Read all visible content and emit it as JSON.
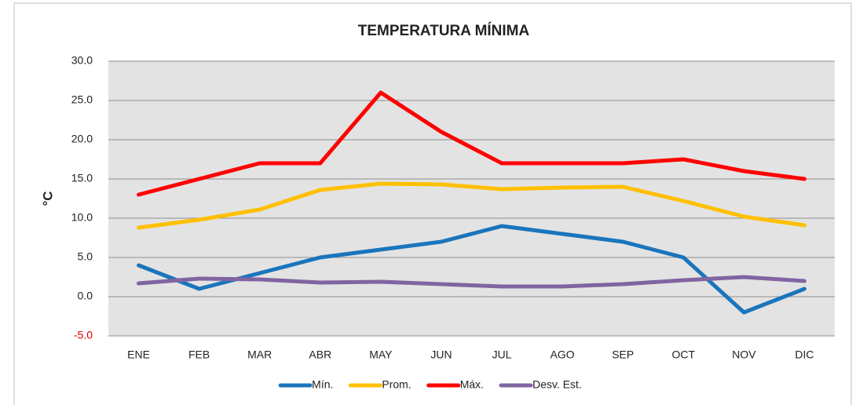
{
  "chart_data": {
    "type": "line",
    "title": "TEMPERATURA MÍNIMA",
    "y_label": "°C",
    "categories": [
      "ENE",
      "FEB",
      "MAR",
      "ABR",
      "MAY",
      "JUN",
      "JUL",
      "AGO",
      "SEP",
      "OCT",
      "NOV",
      "DIC"
    ],
    "series": [
      {
        "name": "Mín.",
        "color": "#1a75bc",
        "values": [
          4,
          1,
          3,
          5,
          6,
          7,
          9,
          8,
          7,
          5,
          -2,
          1
        ]
      },
      {
        "name": "Prom.",
        "color": "#ffc000",
        "values": [
          8.8,
          9.8,
          11.1,
          13.6,
          14.4,
          14.3,
          13.7,
          13.9,
          14.0,
          12.2,
          10.2,
          9.1
        ]
      },
      {
        "name": "Máx.",
        "color": "#ff0000",
        "values": [
          13,
          15,
          17,
          17,
          26,
          21,
          17,
          17,
          17,
          17.5,
          16,
          15
        ]
      },
      {
        "name": "Desv. Est.",
        "color": "#8064a2",
        "values": [
          1.7,
          2.3,
          2.2,
          1.8,
          1.9,
          1.6,
          1.3,
          1.3,
          1.6,
          2.1,
          2.5,
          2.0
        ]
      }
    ],
    "ylim": [
      -5,
      30
    ],
    "yticks": [
      {
        "value": -5,
        "label": "-5.0"
      },
      {
        "value": 0,
        "label": "0.0"
      },
      {
        "value": 5,
        "label": "5.0"
      },
      {
        "value": 10,
        "label": "10.0"
      },
      {
        "value": 15,
        "label": "15.0"
      },
      {
        "value": 20,
        "label": "20.0"
      },
      {
        "value": 25,
        "label": "25.0"
      },
      {
        "value": 30,
        "label": "30.0"
      }
    ],
    "grid": true,
    "negative_tick_color": "#e00000",
    "legend": "bottom"
  }
}
